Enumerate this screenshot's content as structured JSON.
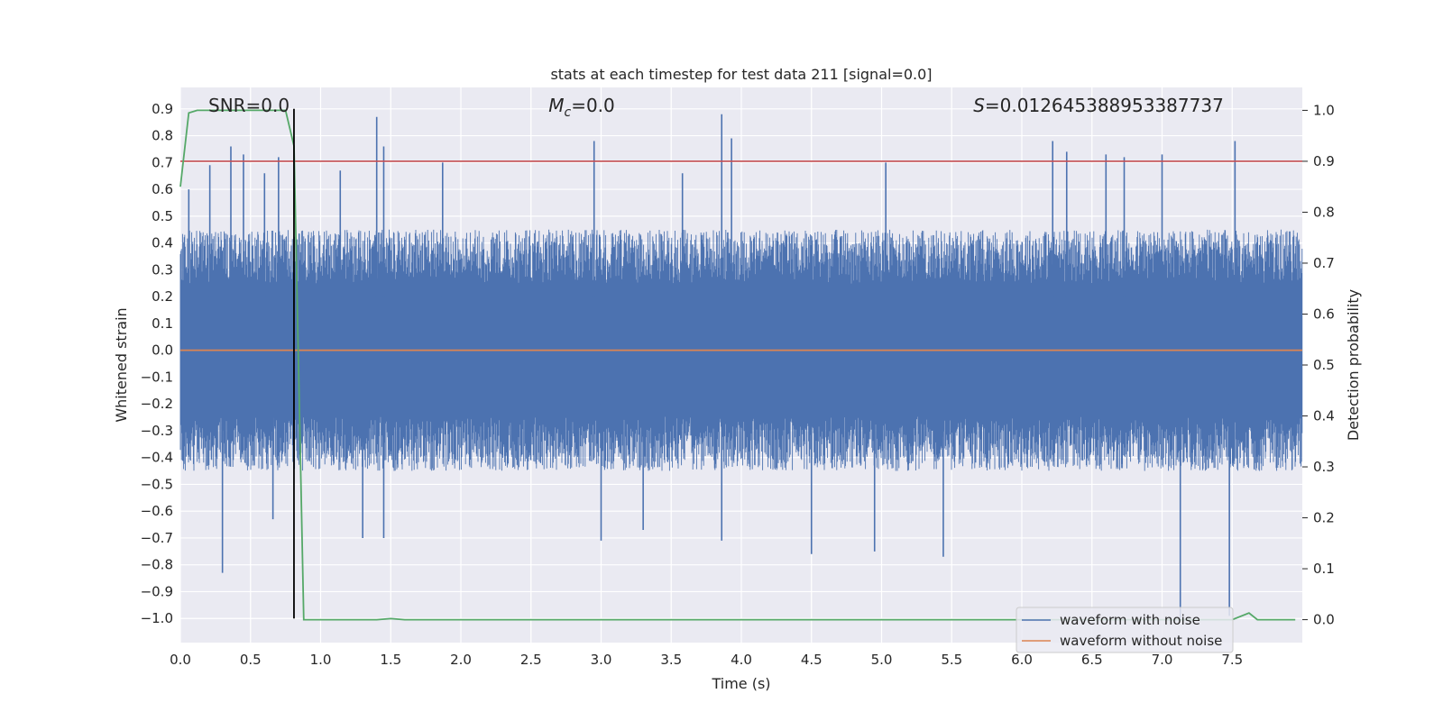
{
  "chart_data": {
    "type": "line",
    "title": "stats at each timestep for test data 211 [signal=0.0]",
    "xlabel": "Time (s)",
    "ylabel_left": "Whitened strain",
    "ylabel_right": "Detection probability",
    "xlim": [
      0.0,
      8.0
    ],
    "ylim_left": [
      -1.09,
      0.98
    ],
    "ylim_right": [
      -0.045,
      1.045
    ],
    "grid": true,
    "legend_position": "lower-right",
    "x_ticks": [
      "0.0",
      "0.5",
      "1.0",
      "1.5",
      "2.0",
      "2.5",
      "3.0",
      "3.5",
      "4.0",
      "4.5",
      "5.0",
      "5.5",
      "6.0",
      "6.5",
      "7.0",
      "7.5"
    ],
    "y_ticks_left": [
      "−1.0",
      "−0.9",
      "−0.8",
      "−0.7",
      "−0.6",
      "−0.5",
      "−0.4",
      "−0.3",
      "−0.2",
      "−0.1",
      "0.0",
      "0.1",
      "0.2",
      "0.3",
      "0.4",
      "0.5",
      "0.6",
      "0.7",
      "0.8",
      "0.9"
    ],
    "y_ticks_right": [
      "0.0",
      "0.1",
      "0.2",
      "0.3",
      "0.4",
      "0.5",
      "0.6",
      "0.7",
      "0.8",
      "0.9",
      "1.0"
    ],
    "annotations": {
      "snr": "SNR=0.0",
      "mc_symbol": "M",
      "mc_sub": "c",
      "mc_value": "=0.0",
      "s_symbol": "S",
      "s_value": "=0.012645388953387737"
    },
    "threshold": {
      "y_right": 0.9,
      "color": "#c44e52"
    },
    "marker_line": {
      "x": 0.81,
      "y_left": [
        -1.0,
        0.9
      ],
      "color": "#000000"
    },
    "series": [
      {
        "name": "waveform with noise",
        "color": "#4c72b0",
        "axis": "left",
        "kind": "noise",
        "typical_envelope": [
          -0.45,
          0.45
        ],
        "peaks": [
          {
            "x": 0.06,
            "y": 0.6
          },
          {
            "x": 0.21,
            "y": 0.69
          },
          {
            "x": 0.3,
            "y": -0.83
          },
          {
            "x": 0.36,
            "y": 0.76
          },
          {
            "x": 0.45,
            "y": 0.73
          },
          {
            "x": 0.6,
            "y": 0.66
          },
          {
            "x": 0.66,
            "y": -0.63
          },
          {
            "x": 0.7,
            "y": 0.72
          },
          {
            "x": 1.14,
            "y": 0.67
          },
          {
            "x": 1.3,
            "y": -0.7
          },
          {
            "x": 1.4,
            "y": 0.87
          },
          {
            "x": 1.45,
            "y": 0.76
          },
          {
            "x": 1.45,
            "y": -0.7
          },
          {
            "x": 1.87,
            "y": 0.7
          },
          {
            "x": 2.95,
            "y": 0.78
          },
          {
            "x": 3.0,
            "y": -0.71
          },
          {
            "x": 3.3,
            "y": -0.67
          },
          {
            "x": 3.58,
            "y": 0.66
          },
          {
            "x": 3.86,
            "y": 0.88
          },
          {
            "x": 3.86,
            "y": -0.71
          },
          {
            "x": 3.93,
            "y": 0.79
          },
          {
            "x": 4.5,
            "y": -0.76
          },
          {
            "x": 4.95,
            "y": -0.75
          },
          {
            "x": 5.03,
            "y": 0.7
          },
          {
            "x": 5.44,
            "y": -0.77
          },
          {
            "x": 6.22,
            "y": 0.78
          },
          {
            "x": 6.32,
            "y": 0.74
          },
          {
            "x": 6.6,
            "y": 0.73
          },
          {
            "x": 6.73,
            "y": 0.72
          },
          {
            "x": 7.0,
            "y": 0.73
          },
          {
            "x": 7.13,
            "y": -1.0
          },
          {
            "x": 7.48,
            "y": -0.99
          },
          {
            "x": 7.52,
            "y": 0.78
          }
        ]
      },
      {
        "name": "waveform without noise",
        "color": "#dd8452",
        "axis": "left",
        "x": [
          0.0,
          8.0
        ],
        "y": [
          0.0,
          0.0
        ]
      },
      {
        "color": "#55a868",
        "axis": "right",
        "x": [
          0.0,
          0.06,
          0.12,
          0.2,
          0.3,
          0.4,
          0.5,
          0.6,
          0.7,
          0.75,
          0.81,
          0.88,
          1.0,
          1.2,
          1.4,
          1.5,
          1.6,
          2.0,
          3.0,
          4.0,
          5.0,
          6.0,
          7.0,
          7.5,
          7.62,
          7.68,
          7.8,
          7.95
        ],
        "y": [
          0.85,
          0.995,
          1.0,
          1.0,
          1.0,
          1.0,
          1.0,
          1.0,
          1.0,
          1.0,
          0.93,
          0.0,
          0.0,
          0.0,
          0.0,
          0.002,
          0.0,
          0.0,
          0.0,
          0.0,
          0.0,
          0.0,
          0.0,
          0.0,
          0.013,
          0.0,
          0.0,
          0.0
        ]
      }
    ]
  }
}
